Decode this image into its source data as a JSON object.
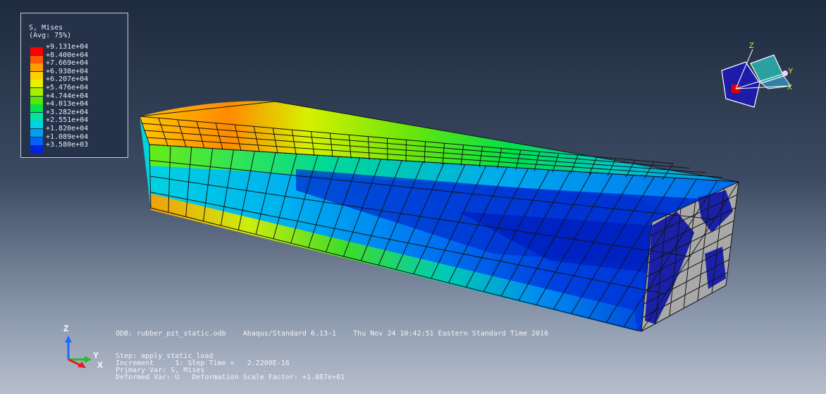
{
  "legend": {
    "title": "S, Mises",
    "subtitle": "(Avg: 75%)",
    "entries": [
      {
        "label": "+9.131e+04",
        "color": "#ff0000"
      },
      {
        "label": "+8.400e+04",
        "color": "#ff5a00"
      },
      {
        "label": "+7.669e+04",
        "color": "#ff9c00"
      },
      {
        "label": "+6.938e+04",
        "color": "#ffd000"
      },
      {
        "label": "+6.207e+04",
        "color": "#e8f000"
      },
      {
        "label": "+5.476e+04",
        "color": "#a8f000"
      },
      {
        "label": "+4.744e+04",
        "color": "#5ae600"
      },
      {
        "label": "+4.013e+04",
        "color": "#00e64a"
      },
      {
        "label": "+3.282e+04",
        "color": "#00e6a0"
      },
      {
        "label": "+2.551e+04",
        "color": "#00d2e6"
      },
      {
        "label": "+1.820e+04",
        "color": "#00a0f0"
      },
      {
        "label": "+1.089e+04",
        "color": "#0064f0"
      },
      {
        "label": "+3.580e+03",
        "color": "#0022e0"
      }
    ]
  },
  "info": {
    "odb_line": "ODB: rubber_pzt_static.odb    Abaqus/Standard 6.13-1    Thu Nov 24 10:42:51 Eastern Standard Time 2016",
    "step_line": "Step: apply_static_load",
    "increment_line": "Increment     1: Step Time =   2.2200E-16",
    "primary_var_line": "Primary Var: S, Mises",
    "deformed_var_line": "Deformed Var: U   Deformation Scale Factor: +1.887e+01"
  },
  "triad": {
    "z": "Z",
    "y": "Y",
    "x": "X"
  },
  "view_cube": {
    "z": "Z",
    "y": "Y",
    "x": "X"
  },
  "colors": {
    "mesh_line": "#141414",
    "end_face": "#a9a9a9",
    "end_patch": "#1a20a8"
  }
}
